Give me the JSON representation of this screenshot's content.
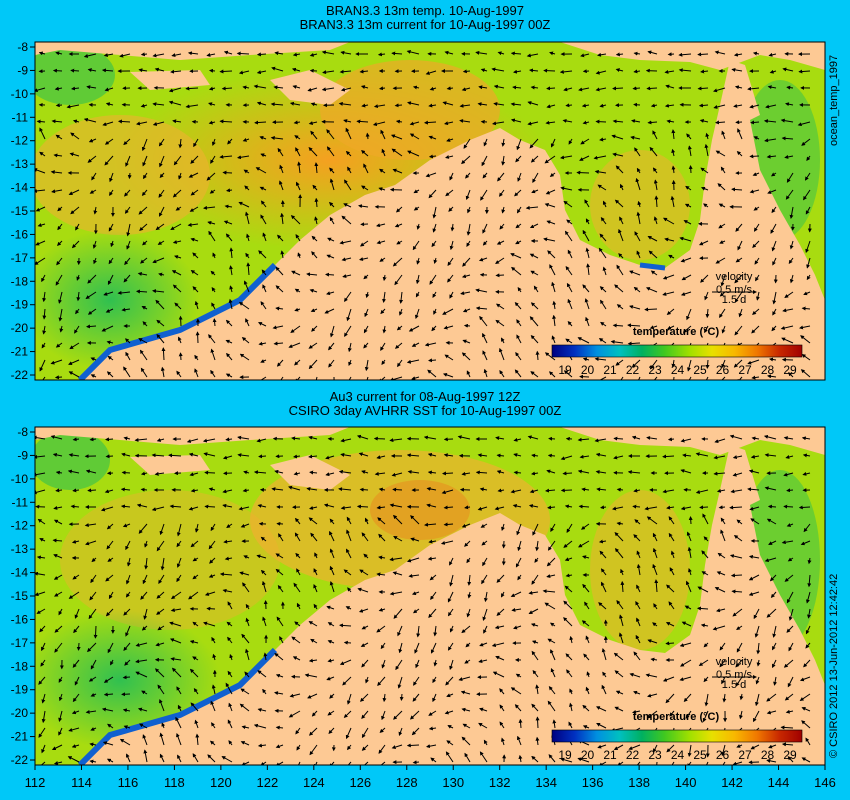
{
  "panels": [
    {
      "title_line1": "BRAN3.3 13m temp. 10-Aug-1997",
      "title_line2": "BRAN3.3 13m current for 10-Aug-1997 00Z",
      "velocity_label": "velocity",
      "velocity_scale": "0.5 m/s",
      "velocity_time": "1.5 d",
      "colorbar_title": "temperature (°C)",
      "side_label": "ocean_temp_1997"
    },
    {
      "title_line1": "Au3 current for 08-Aug-1997 12Z",
      "title_line2": "CSIRO 3day AVHRR SST for 10-Aug-1997 00Z",
      "velocity_label": "velocity",
      "velocity_scale": "0.5 m/s",
      "velocity_time": "1.5 d",
      "colorbar_title": "temperature (°C)",
      "side_label": "© CSIRO 2012  13-Jun-2012 12:42:42"
    }
  ],
  "colorbar_ticks": [
    "19",
    "20",
    "21",
    "22",
    "23",
    "24",
    "25",
    "26",
    "27",
    "28",
    "29"
  ],
  "lat_ticks": [
    "-8",
    "-9",
    "-10",
    "-11",
    "-12",
    "-13",
    "-14",
    "-15",
    "-16",
    "-17",
    "-18",
    "-19",
    "-20",
    "-21",
    "-22"
  ],
  "lon_ticks": [
    "112",
    "114",
    "116",
    "118",
    "120",
    "122",
    "124",
    "126",
    "128",
    "130",
    "132",
    "134",
    "136",
    "138",
    "140",
    "142",
    "144",
    "146"
  ],
  "colors": {
    "background": "#00c8f8",
    "land": "#fdc994",
    "ocean_warm": "#f0b030",
    "ocean_mid": "#90d820",
    "ocean_cool": "#20c070",
    "ocean_cold": "#1060d0",
    "colorbar": [
      "#000080",
      "#0030c0",
      "#0090e0",
      "#00c0c0",
      "#00b060",
      "#40c820",
      "#a0e000",
      "#e8e000",
      "#f8b800",
      "#f07800",
      "#c82800",
      "#a00000"
    ]
  }
}
